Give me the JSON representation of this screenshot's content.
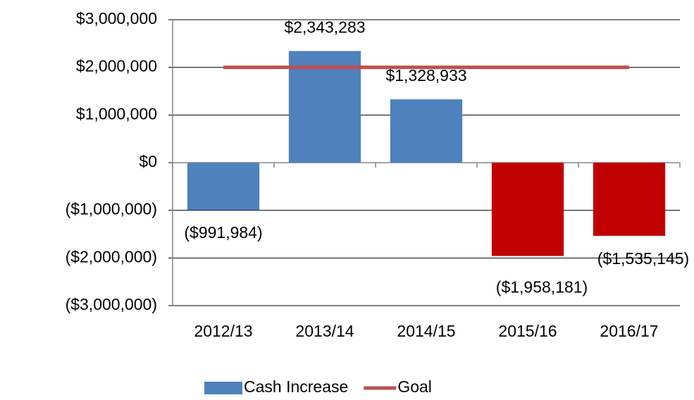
{
  "chart_data": {
    "type": "bar",
    "categories": [
      "2012/13",
      "2013/14",
      "2014/15",
      "2015/16",
      "2016/17"
    ],
    "series": [
      {
        "name": "Cash Increase",
        "type": "bar",
        "color": "#4f81bd",
        "colors": [
          "#4f81bd",
          "#4f81bd",
          "#4f81bd",
          "#c00000",
          "#c00000"
        ],
        "values": [
          -991984,
          2343283,
          1328933,
          -1958181,
          -1535145
        ],
        "value_labels": [
          "($991,984)",
          "$2,343,283",
          "$1,328,933",
          "($1,958,181)",
          "($1,535,145)"
        ]
      },
      {
        "name": "Goal",
        "type": "line",
        "color": "#c0504d",
        "values": [
          2000000,
          2000000,
          2000000,
          2000000,
          2000000
        ]
      }
    ],
    "ylim": [
      -3000000,
      3000000
    ],
    "yticks": [
      {
        "value": -3000000,
        "label": "($3,000,000)"
      },
      {
        "value": -2000000,
        "label": "($2,000,000)"
      },
      {
        "value": -1000000,
        "label": "($1,000,000)"
      },
      {
        "value": 0,
        "label": "$0"
      },
      {
        "value": 1000000,
        "label": "$1,000,000"
      },
      {
        "value": 2000000,
        "label": "$2,000,000"
      },
      {
        "value": 3000000,
        "label": "$3,000,000"
      }
    ],
    "grid": true,
    "legend": "bottom"
  }
}
